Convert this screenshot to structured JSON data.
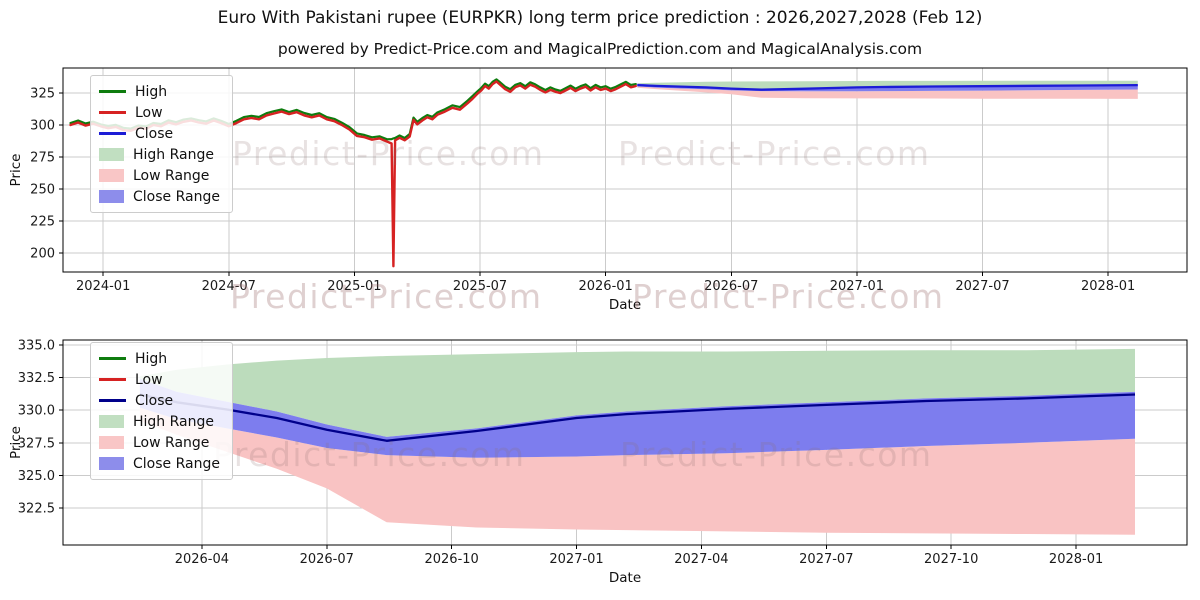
{
  "figure": {
    "title": "Euro With Pakistani rupee (EURPKR) long term price prediction : 2026,2027,2028 (Feb 12)",
    "subtitle": "powered by Predict-Price.com and MagicalPrediction.com and MagicalAnalysis.com"
  },
  "watermark": {
    "text": "Predict-Price.com"
  },
  "colors": {
    "high_line": "#0e7c0e",
    "low_line": "#d62222",
    "close_line_top_chart": "#1c1cd6",
    "close_line_bottom_chart": "#00008b",
    "high_range_fill": "#bcdcbc",
    "low_range_fill": "#f9c3c3",
    "close_range_fill": "#7d7dee",
    "grid": "#cbcbcb",
    "spine": "#000000"
  },
  "chart_data": [
    {
      "id": "full-history-and-forecast",
      "type": "line",
      "xlabel": "Date",
      "ylabel": "Price",
      "grid": true,
      "xlim": [
        2023.84,
        2028.314
      ],
      "ylim": [
        185,
        344.6
      ],
      "x_tick_values": [
        2024.0,
        2024.5,
        2025.0,
        2025.5,
        2026.0,
        2026.5,
        2027.0,
        2027.5,
        2028.0
      ],
      "x_tick_labels": [
        "2024-01",
        "2024-07",
        "2025-01",
        "2025-07",
        "2026-01",
        "2026-07",
        "2027-01",
        "2027-07",
        "2028-01"
      ],
      "y_tick_values": [
        200,
        225,
        250,
        275,
        300,
        325
      ],
      "y_tick_labels": [
        "200",
        "225",
        "250",
        "275",
        "300",
        "325"
      ],
      "legend": {
        "position": "upper left",
        "items": [
          {
            "label": "High",
            "type": "line",
            "color": "#0e7c0e"
          },
          {
            "label": "Low",
            "type": "line",
            "color": "#d62222"
          },
          {
            "label": "Close",
            "type": "line",
            "color": "#1c1cd6"
          },
          {
            "label": "High Range",
            "type": "patch",
            "color": "#c1dfc1"
          },
          {
            "label": "Low Range",
            "type": "patch",
            "color": "#f9c6c6"
          },
          {
            "label": "Close Range",
            "type": "patch",
            "color": "#8d8deb"
          }
        ]
      },
      "history_points_xlowhigh": [
        [
          2023.87,
          300.0,
          301.6
        ],
        [
          2023.9,
          302.0,
          303.5
        ],
        [
          2023.93,
          299.5,
          301.2
        ],
        [
          2023.96,
          301.0,
          302.6
        ],
        [
          2023.99,
          299.0,
          300.5
        ],
        [
          2024.02,
          297.5,
          299.2
        ],
        [
          2024.05,
          298.5,
          300.1
        ],
        [
          2024.08,
          296.0,
          297.8
        ],
        [
          2024.11,
          295.5,
          297.2
        ],
        [
          2024.14,
          298.0,
          299.6
        ],
        [
          2024.17,
          297.0,
          298.8
        ],
        [
          2024.2,
          300.0,
          301.6
        ],
        [
          2024.23,
          299.0,
          300.8
        ],
        [
          2024.26,
          302.0,
          303.7
        ],
        [
          2024.29,
          300.5,
          302.2
        ],
        [
          2024.32,
          302.5,
          304.2
        ],
        [
          2024.35,
          303.5,
          305.2
        ],
        [
          2024.38,
          302.0,
          303.8
        ],
        [
          2024.41,
          301.0,
          302.8
        ],
        [
          2024.44,
          303.5,
          305.2
        ],
        [
          2024.47,
          301.5,
          303.2
        ],
        [
          2024.5,
          299.0,
          300.8
        ],
        [
          2024.53,
          301.5,
          303.2
        ],
        [
          2024.56,
          304.5,
          306.2
        ],
        [
          2024.59,
          305.5,
          307.2
        ],
        [
          2024.62,
          304.5,
          306.3
        ],
        [
          2024.65,
          307.5,
          309.2
        ],
        [
          2024.68,
          309.0,
          310.8
        ],
        [
          2024.71,
          310.5,
          312.2
        ],
        [
          2024.74,
          308.5,
          310.2
        ],
        [
          2024.77,
          310.0,
          311.8
        ],
        [
          2024.8,
          307.5,
          309.4
        ],
        [
          2024.83,
          306.0,
          307.8
        ],
        [
          2024.86,
          307.5,
          309.2
        ],
        [
          2024.89,
          304.5,
          306.2
        ],
        [
          2024.92,
          303.0,
          304.8
        ],
        [
          2024.95,
          300.0,
          301.8
        ],
        [
          2024.98,
          296.5,
          298.4
        ],
        [
          2025.01,
          291.5,
          293.4
        ],
        [
          2025.04,
          290.5,
          292.2
        ],
        [
          2025.07,
          288.5,
          290.4
        ],
        [
          2025.1,
          289.5,
          291.2
        ],
        [
          2025.13,
          287.0,
          288.8
        ],
        [
          2025.148,
          285.5,
          289.0
        ],
        [
          2025.155,
          189.5,
          289.5
        ],
        [
          2025.162,
          288.0,
          289.8
        ],
        [
          2025.18,
          290.0,
          291.8
        ],
        [
          2025.2,
          288.0,
          289.8
        ],
        [
          2025.22,
          291.0,
          293.0
        ],
        [
          2025.235,
          304.0,
          305.8
        ],
        [
          2025.25,
          300.5,
          302.4
        ],
        [
          2025.27,
          303.5,
          305.4
        ],
        [
          2025.29,
          306.0,
          307.8
        ],
        [
          2025.31,
          304.5,
          306.4
        ],
        [
          2025.33,
          308.0,
          309.8
        ],
        [
          2025.36,
          310.5,
          312.4
        ],
        [
          2025.39,
          313.5,
          315.4
        ],
        [
          2025.42,
          312.0,
          314.0
        ],
        [
          2025.45,
          317.0,
          319.0
        ],
        [
          2025.47,
          320.5,
          322.6
        ],
        [
          2025.49,
          324.5,
          326.4
        ],
        [
          2025.505,
          327.0,
          329.0
        ],
        [
          2025.52,
          330.5,
          332.4
        ],
        [
          2025.535,
          328.5,
          330.4
        ],
        [
          2025.55,
          332.0,
          333.8
        ],
        [
          2025.565,
          334.0,
          335.7
        ],
        [
          2025.58,
          331.5,
          333.4
        ],
        [
          2025.6,
          328.0,
          330.0
        ],
        [
          2025.62,
          326.0,
          328.0
        ],
        [
          2025.64,
          329.5,
          331.4
        ],
        [
          2025.66,
          331.0,
          332.8
        ],
        [
          2025.68,
          328.5,
          330.4
        ],
        [
          2025.7,
          331.5,
          333.4
        ],
        [
          2025.72,
          330.0,
          331.8
        ],
        [
          2025.74,
          327.5,
          329.4
        ],
        [
          2025.76,
          325.5,
          327.4
        ],
        [
          2025.78,
          327.5,
          329.4
        ],
        [
          2025.8,
          326.0,
          327.8
        ],
        [
          2025.82,
          325.0,
          326.8
        ],
        [
          2025.84,
          327.0,
          328.8
        ],
        [
          2025.86,
          329.0,
          330.8
        ],
        [
          2025.88,
          326.5,
          328.4
        ],
        [
          2025.9,
          328.5,
          330.4
        ],
        [
          2025.92,
          330.0,
          331.8
        ],
        [
          2025.94,
          327.0,
          328.8
        ],
        [
          2025.96,
          329.5,
          331.4
        ],
        [
          2025.98,
          327.5,
          329.4
        ],
        [
          2026.0,
          328.5,
          330.4
        ],
        [
          2026.02,
          326.5,
          328.4
        ],
        [
          2026.04,
          328.0,
          329.8
        ],
        [
          2026.06,
          330.0,
          331.8
        ],
        [
          2026.08,
          332.0,
          333.8
        ],
        [
          2026.1,
          329.5,
          331.4
        ],
        [
          2026.12,
          330.5,
          332.0
        ]
      ],
      "forecast": {
        "x": [
          2026.126,
          2026.2,
          2026.3,
          2026.4,
          2026.5,
          2026.62,
          2026.8,
          2027.0,
          2027.1,
          2027.3,
          2027.5,
          2027.7,
          2027.9,
          2028.118
        ],
        "close": [
          331.2,
          330.6,
          330.05,
          329.4,
          328.5,
          327.65,
          328.4,
          329.4,
          329.7,
          330.1,
          330.4,
          330.7,
          330.9,
          331.2
        ],
        "high_range_top": [
          332.6,
          333.1,
          333.5,
          333.8,
          334.0,
          334.15,
          334.3,
          334.45,
          334.5,
          334.5,
          334.55,
          334.6,
          334.6,
          334.7
        ],
        "close_range_top": [
          332.4,
          331.4,
          330.65,
          329.9,
          328.9,
          327.95,
          328.6,
          329.6,
          329.9,
          330.3,
          330.6,
          330.9,
          331.1,
          331.4
        ],
        "close_range_bottom": [
          330.2,
          329.3,
          328.6,
          327.9,
          327.1,
          326.55,
          326.35,
          326.45,
          326.55,
          326.7,
          326.95,
          327.25,
          327.5,
          327.8
        ],
        "low_range_bottom": [
          329.2,
          328.1,
          326.8,
          325.5,
          324.0,
          321.4,
          321.0,
          320.85,
          320.8,
          320.7,
          320.6,
          320.55,
          320.5,
          320.45
        ]
      }
    },
    {
      "id": "forecast-detail",
      "type": "line",
      "xlabel": "Date",
      "ylabel": "Price",
      "grid": true,
      "xlim": [
        2025.972,
        2028.222
      ],
      "ylim": [
        319.66,
        335.38
      ],
      "x_tick_values": [
        2026.25,
        2026.5,
        2026.75,
        2027.0,
        2027.25,
        2027.5,
        2027.75,
        2028.0
      ],
      "x_tick_labels": [
        "2026-04",
        "2026-07",
        "2026-10",
        "2027-01",
        "2027-04",
        "2027-07",
        "2027-10",
        "2028-01"
      ],
      "y_tick_values": [
        322.5,
        325.0,
        327.5,
        330.0,
        332.5,
        335.0
      ],
      "y_tick_labels": [
        "322.5",
        "325.0",
        "327.5",
        "330.0",
        "332.5",
        "335.0"
      ],
      "legend": {
        "position": "upper left",
        "items": [
          {
            "label": "High",
            "type": "line",
            "color": "#0e7c0e"
          },
          {
            "label": "Low",
            "type": "line",
            "color": "#d62222"
          },
          {
            "label": "Close",
            "type": "line",
            "color": "#00008b"
          },
          {
            "label": "High Range",
            "type": "patch",
            "color": "#c1dfc1"
          },
          {
            "label": "Low Range",
            "type": "patch",
            "color": "#f9c6c6"
          },
          {
            "label": "Close Range",
            "type": "patch",
            "color": "#8d8deb"
          }
        ]
      },
      "history_points_xlowhigh": [],
      "forecast": {
        "x": [
          2026.126,
          2026.2,
          2026.3,
          2026.4,
          2026.5,
          2026.62,
          2026.8,
          2027.0,
          2027.1,
          2027.3,
          2027.5,
          2027.7,
          2027.9,
          2028.118
        ],
        "close": [
          331.2,
          330.6,
          330.05,
          329.4,
          328.5,
          327.65,
          328.4,
          329.4,
          329.7,
          330.1,
          330.4,
          330.7,
          330.9,
          331.2
        ],
        "high_range_top": [
          332.6,
          333.1,
          333.5,
          333.8,
          334.0,
          334.15,
          334.3,
          334.45,
          334.5,
          334.5,
          334.55,
          334.6,
          334.6,
          334.7
        ],
        "close_range_top": [
          332.4,
          331.4,
          330.65,
          329.9,
          328.9,
          327.95,
          328.6,
          329.6,
          329.9,
          330.3,
          330.6,
          330.9,
          331.1,
          331.4
        ],
        "close_range_bottom": [
          330.2,
          329.3,
          328.6,
          327.9,
          327.1,
          326.55,
          326.35,
          326.45,
          326.55,
          326.7,
          326.95,
          327.25,
          327.5,
          327.8
        ],
        "low_range_bottom": [
          329.2,
          328.1,
          326.8,
          325.5,
          324.0,
          321.4,
          321.0,
          320.85,
          320.8,
          320.7,
          320.6,
          320.55,
          320.5,
          320.45
        ]
      }
    }
  ]
}
